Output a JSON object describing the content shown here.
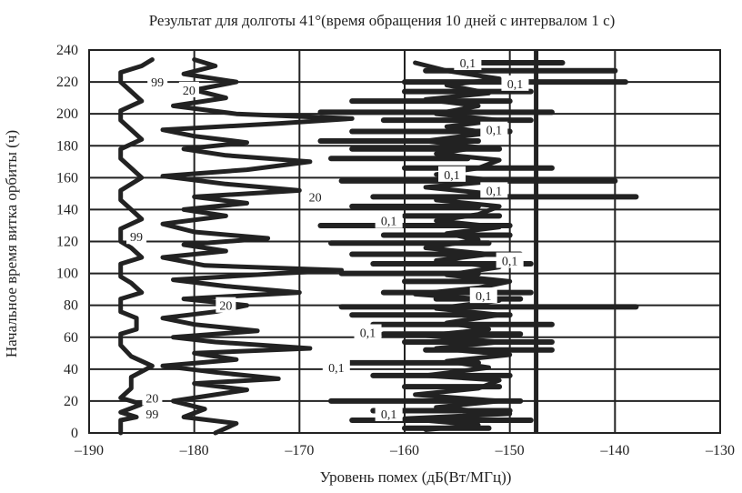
{
  "chart_data": {
    "type": "line",
    "title": "Результат для долготы   41°(время обращения 10 дней с интервалом 1 с)",
    "xlabel": "Уровень помех (дБ(Вт/МГц))",
    "ylabel": "Начальное время витка орбиты (ч)",
    "xlim": [
      -190,
      -130
    ],
    "ylim": [
      0,
      240
    ],
    "x_ticks": [
      -190,
      -180,
      -170,
      -160,
      -150,
      -140,
      -130
    ],
    "y_ticks": [
      0,
      20,
      40,
      60,
      80,
      100,
      120,
      140,
      160,
      180,
      200,
      220,
      240
    ],
    "x_tick_labels": [
      "–190",
      "–180",
      "–170",
      "–160",
      "–150",
      "–140",
      "–130"
    ],
    "y_tick_labels": [
      "0",
      "20",
      "40",
      "60",
      "80",
      "100",
      "120",
      "140",
      "160",
      "180",
      "200",
      "220",
      "240"
    ],
    "grid": true,
    "series": [
      {
        "values": [
          [
            -187,
            0
          ],
          [
            -187,
            8
          ],
          [
            -185.5,
            10
          ],
          [
            -187,
            13
          ],
          [
            -185,
            18
          ],
          [
            -187,
            22
          ],
          [
            -186,
            28
          ],
          [
            -186,
            35
          ],
          [
            -184,
            42
          ],
          [
            -186,
            48
          ],
          [
            -187,
            55
          ],
          [
            -187,
            62
          ],
          [
            -185.5,
            65
          ],
          [
            -185.5,
            72
          ],
          [
            -187,
            76
          ],
          [
            -187,
            84
          ],
          [
            -185,
            88
          ],
          [
            -186,
            94
          ],
          [
            -187,
            98
          ],
          [
            -187,
            106
          ],
          [
            -185,
            110
          ],
          [
            -186,
            116
          ],
          [
            -187,
            120
          ],
          [
            -187,
            128
          ],
          [
            -185,
            134
          ],
          [
            -186,
            140
          ],
          [
            -187,
            146
          ],
          [
            -187,
            152
          ],
          [
            -185,
            160
          ],
          [
            -186,
            166
          ],
          [
            -187,
            172
          ],
          [
            -187,
            178
          ],
          [
            -185,
            184
          ],
          [
            -186,
            190
          ],
          [
            -187,
            196
          ],
          [
            -187,
            202
          ],
          [
            -185,
            208
          ],
          [
            -186,
            214
          ],
          [
            -187,
            220
          ],
          [
            -187,
            226
          ],
          [
            -185,
            230
          ],
          [
            -184,
            234
          ]
        ]
      },
      {
        "values": [
          [
            -178,
            0
          ],
          [
            -176,
            6
          ],
          [
            -181,
            10
          ],
          [
            -179,
            15
          ],
          [
            -182,
            20
          ],
          [
            -178,
            24
          ],
          [
            -175,
            27
          ],
          [
            -180,
            31
          ],
          [
            -172,
            34
          ],
          [
            -178,
            38
          ],
          [
            -183,
            42
          ],
          [
            -176,
            46
          ],
          [
            -180,
            50
          ],
          [
            -169,
            53
          ],
          [
            -178,
            57
          ],
          [
            -182,
            60
          ],
          [
            -174,
            64
          ],
          [
            -180,
            68
          ],
          [
            -183,
            72
          ],
          [
            -178,
            76
          ],
          [
            -175,
            80
          ],
          [
            -181,
            84
          ],
          [
            -170,
            88
          ],
          [
            -177,
            92
          ],
          [
            -182,
            96
          ],
          [
            -172,
            100
          ],
          [
            -166,
            102
          ],
          [
            -179,
            105
          ],
          [
            -183,
            110
          ],
          [
            -177,
            114
          ],
          [
            -181,
            118
          ],
          [
            -173,
            122
          ],
          [
            -180,
            126
          ],
          [
            -183,
            131
          ],
          [
            -177,
            136
          ],
          [
            -181,
            140
          ],
          [
            -175,
            144
          ],
          [
            -180,
            148
          ],
          [
            -170,
            152
          ],
          [
            -177,
            156
          ],
          [
            -183,
            161
          ],
          [
            -175,
            165
          ],
          [
            -169,
            170
          ],
          [
            -177,
            174
          ],
          [
            -181,
            178
          ],
          [
            -175,
            182
          ],
          [
            -180,
            186
          ],
          [
            -183,
            190
          ],
          [
            -172,
            194
          ],
          [
            -165,
            197
          ],
          [
            -176,
            200
          ],
          [
            -182,
            205
          ],
          [
            -177,
            210
          ],
          [
            -180,
            215
          ],
          [
            -176,
            220
          ],
          [
            -181,
            225
          ],
          [
            -178,
            230
          ],
          [
            -180,
            234
          ]
        ]
      },
      {
        "values": [
          [
            -158,
            2
          ],
          [
            -153,
            5
          ],
          [
            -160,
            9
          ],
          [
            -150,
            12
          ],
          [
            -157,
            16
          ],
          [
            -151,
            20
          ],
          [
            -159,
            24
          ],
          [
            -153,
            28
          ],
          [
            -151,
            33
          ],
          [
            -158,
            36
          ],
          [
            -152,
            41
          ],
          [
            -156,
            45
          ],
          [
            -150,
            49
          ],
          [
            -157,
            53
          ],
          [
            -151,
            57
          ],
          [
            -158,
            61
          ],
          [
            -152,
            65
          ],
          [
            -156,
            69
          ],
          [
            -151,
            74
          ],
          [
            -157,
            78
          ],
          [
            -151,
            83
          ],
          [
            -159,
            87
          ],
          [
            -153,
            91
          ],
          [
            -150,
            95
          ],
          [
            -156,
            99
          ],
          [
            -151,
            104
          ],
          [
            -157,
            108
          ],
          [
            -152,
            112
          ],
          [
            -158,
            116
          ],
          [
            -153,
            121
          ],
          [
            -156,
            125
          ],
          [
            -151,
            129
          ],
          [
            -157,
            133
          ],
          [
            -153,
            137
          ],
          [
            -151,
            142
          ],
          [
            -157,
            146
          ],
          [
            -152,
            150
          ],
          [
            -158,
            154
          ],
          [
            -151,
            158
          ],
          [
            -157,
            162
          ],
          [
            -153,
            166
          ],
          [
            -151,
            171
          ],
          [
            -157,
            175
          ],
          [
            -153,
            179
          ],
          [
            -158,
            183
          ],
          [
            -152,
            188
          ],
          [
            -156,
            192
          ],
          [
            -151,
            196
          ],
          [
            -157,
            200
          ],
          [
            -153,
            205
          ],
          [
            -158,
            209
          ],
          [
            -152,
            213
          ],
          [
            -156,
            218
          ],
          [
            -151,
            222
          ],
          [
            -156,
            227
          ],
          [
            -159,
            232
          ]
        ]
      }
    ],
    "segments": [
      [
        -154,
        -145,
        232
      ],
      [
        -158,
        -140,
        227
      ],
      [
        -160,
        -139,
        220
      ],
      [
        -160,
        -148,
        214
      ],
      [
        -165,
        -150,
        208
      ],
      [
        -168,
        -146,
        201
      ],
      [
        -162,
        -148,
        196
      ],
      [
        -165,
        -150,
        189
      ],
      [
        -168,
        -153,
        183
      ],
      [
        -165,
        -151,
        178
      ],
      [
        -167,
        -154,
        172
      ],
      [
        -160,
        -146,
        166
      ],
      [
        -166,
        -140,
        158
      ],
      [
        -163,
        -138,
        148
      ],
      [
        -165,
        -153,
        142
      ],
      [
        -160,
        -151,
        136
      ],
      [
        -168,
        -150,
        130
      ],
      [
        -162,
        -150,
        124
      ],
      [
        -167,
        -152,
        119
      ],
      [
        -165,
        -149,
        112
      ],
      [
        -163,
        -148,
        106
      ],
      [
        -166,
        -153,
        100
      ],
      [
        -160,
        -151,
        95
      ],
      [
        -162,
        -148,
        88
      ],
      [
        -157,
        -149,
        84
      ],
      [
        -166,
        -138,
        79
      ],
      [
        -165,
        -150,
        74
      ],
      [
        -163,
        -146,
        68
      ],
      [
        -162,
        -149,
        62
      ],
      [
        -160,
        -146,
        57
      ],
      [
        -158,
        -146,
        52
      ],
      [
        -167,
        -153,
        44
      ],
      [
        -163,
        -150,
        36
      ],
      [
        -160,
        -151,
        29
      ],
      [
        -167,
        -149,
        20
      ],
      [
        -163,
        -150,
        14
      ],
      [
        -165,
        -148,
        8
      ],
      [
        -160,
        -152,
        3
      ]
    ],
    "contour_labels": [
      {
        "text": "99",
        "x": -183.5,
        "y": 220
      },
      {
        "text": "20",
        "x": -180.5,
        "y": 215
      },
      {
        "text": "0,1",
        "x": -154,
        "y": 232
      },
      {
        "text": "0,1",
        "x": -149.5,
        "y": 219
      },
      {
        "text": "0,1",
        "x": -151.5,
        "y": 190
      },
      {
        "text": "0,1",
        "x": -155.5,
        "y": 162
      },
      {
        "text": "0,1",
        "x": -151.5,
        "y": 152
      },
      {
        "text": "20",
        "x": -168.5,
        "y": 148
      },
      {
        "text": "0,1",
        "x": -161.5,
        "y": 133
      },
      {
        "text": "99",
        "x": -185.5,
        "y": 123
      },
      {
        "text": "0,1",
        "x": -150,
        "y": 108
      },
      {
        "text": "0,1",
        "x": -152.5,
        "y": 86
      },
      {
        "text": "20",
        "x": -177,
        "y": 80
      },
      {
        "text": "0,1",
        "x": -163.5,
        "y": 63
      },
      {
        "text": "0,1",
        "x": -166.5,
        "y": 41
      },
      {
        "text": "20",
        "x": -184,
        "y": 22
      },
      {
        "text": "99",
        "x": -184,
        "y": 12
      },
      {
        "text": "0,1",
        "x": -161.5,
        "y": 12
      }
    ],
    "vertical_lines": [
      -147.5
    ],
    "color": "#222222"
  }
}
